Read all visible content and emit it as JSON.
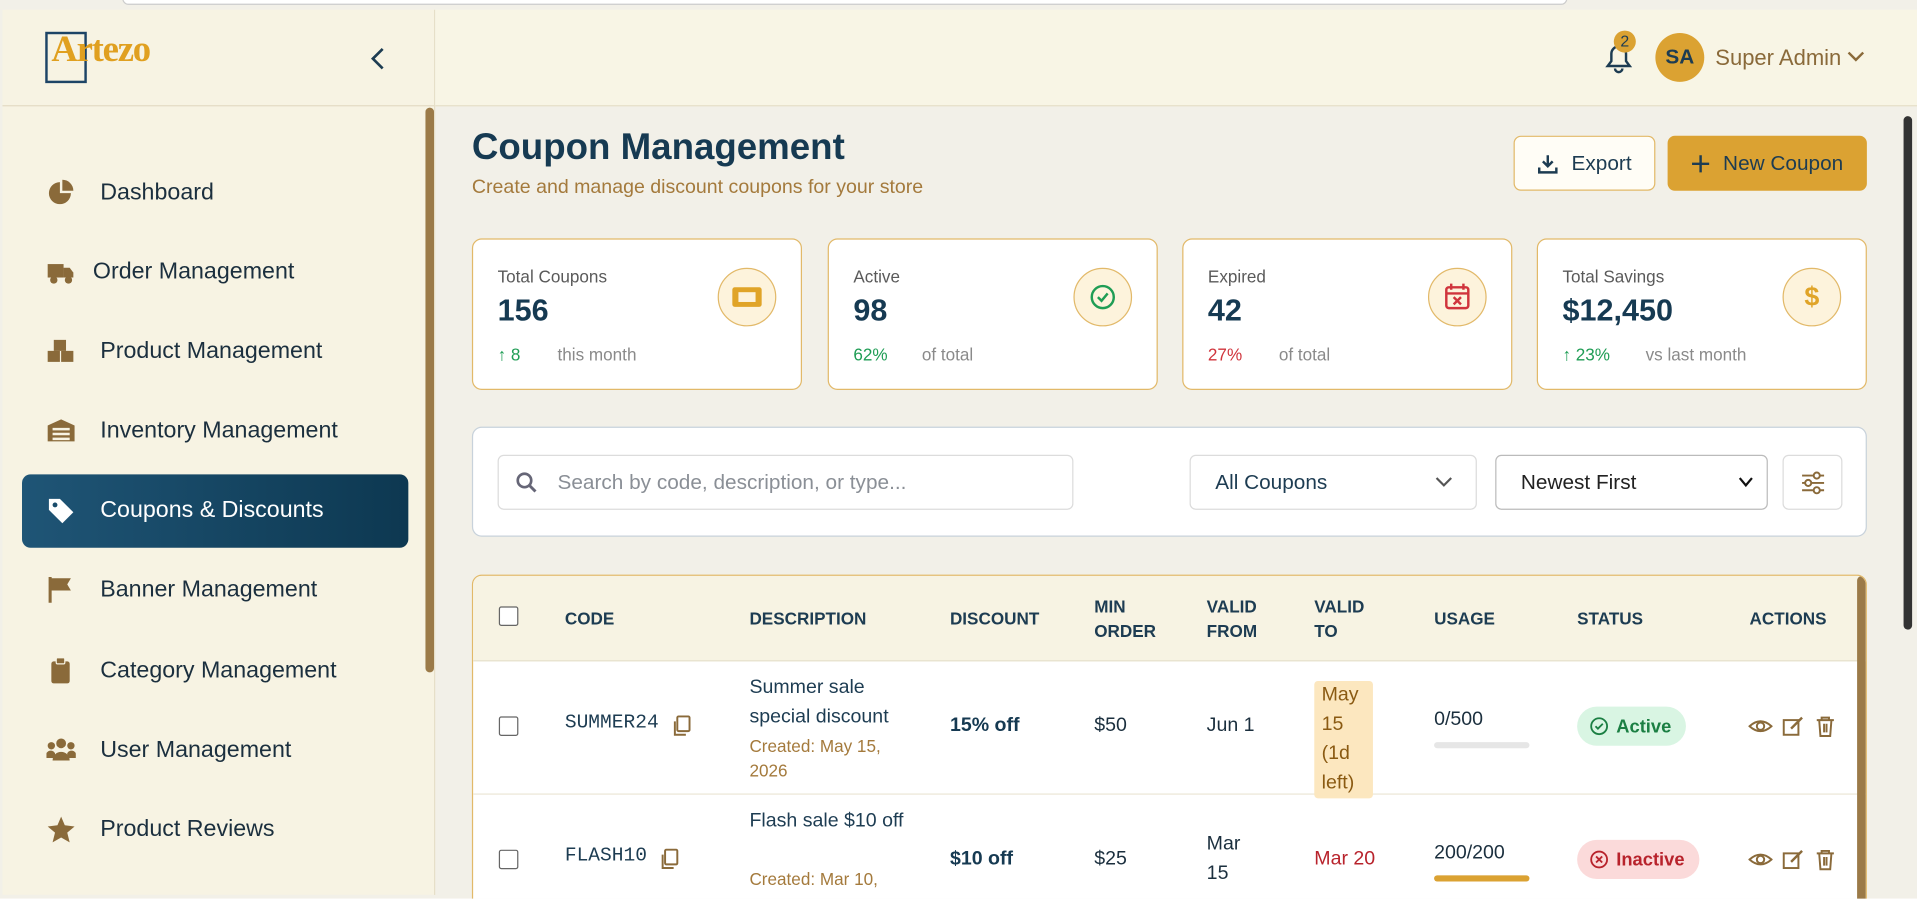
{
  "brand": "Artezo",
  "sidebar": {
    "items": [
      "Dashboard",
      "Order Management",
      "Product Management",
      "Inventory Management",
      "Coupons & Discounts",
      "Banner Management",
      "Category Management",
      "User Management",
      "Product Reviews"
    ],
    "active": "Coupons & Discounts"
  },
  "header": {
    "notifications": "2",
    "avatar": "SA",
    "user": "Super Admin"
  },
  "page": {
    "title": "Coupon Management",
    "subtitle": "Create and manage discount coupons for your store",
    "export": "Export",
    "new": "New Coupon"
  },
  "stats": [
    {
      "label": "Total Coupons",
      "value": "156",
      "change": "↑ 8",
      "note": "this month"
    },
    {
      "label": "Active",
      "value": "98",
      "change": "62%",
      "note": "of total"
    },
    {
      "label": "Expired",
      "value": "42",
      "change": "27%",
      "note": "of total"
    },
    {
      "label": "Total Savings",
      "value": "$12,450",
      "change": "↑ 23%",
      "note": "vs last month"
    }
  ],
  "filters": {
    "search": "Search by code, description, or type...",
    "type": "All Coupons",
    "sort": "Newest First"
  },
  "table": {
    "columns": [
      "CODE",
      "DESCRIPTION",
      "DISCOUNT",
      "MIN ORDER",
      "VALID FROM",
      "VALID TO",
      "USAGE",
      "STATUS",
      "ACTIONS"
    ],
    "rows": [
      {
        "code": "SUMMER24",
        "description": "Summer sale special discount",
        "created": "Created: May 15, 2026",
        "discount": "15% off",
        "min_order": "$50",
        "valid_from": "Jun 1",
        "valid_to": "May 15 (1d left)",
        "usage": "0/500",
        "status": "Active"
      },
      {
        "code": "FLASH10",
        "description": "Flash sale $10 off",
        "created": "Created: Mar 10,",
        "discount": "$10 off",
        "min_order": "$25",
        "valid_from": "Mar 15",
        "valid_to": "Mar 20",
        "usage": "200/200",
        "status": "Inactive"
      }
    ]
  }
}
